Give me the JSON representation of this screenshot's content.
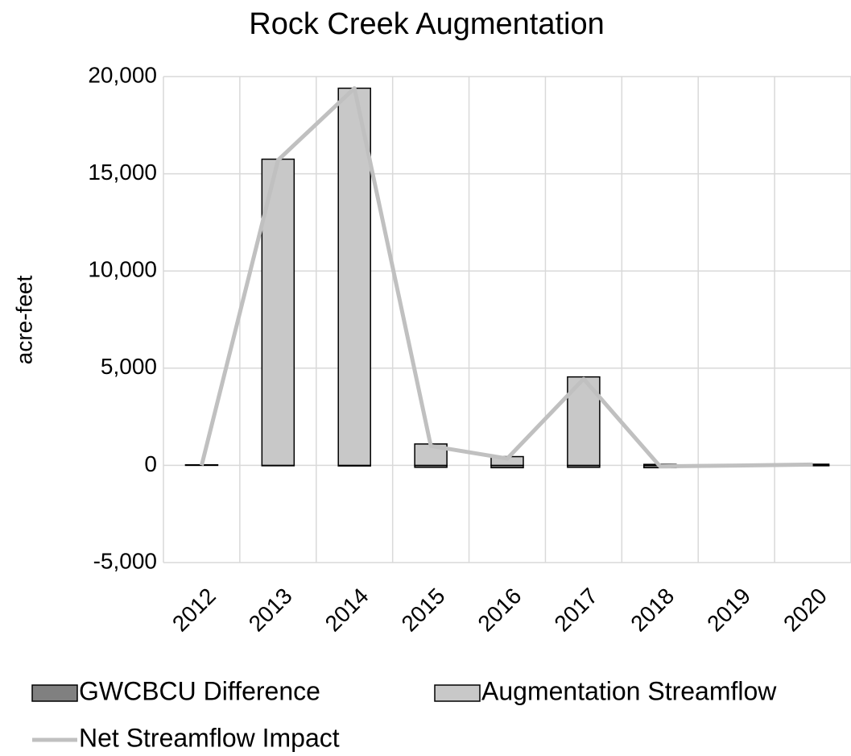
{
  "chart_data": {
    "type": "bar",
    "title": "Rock Creek Augmentation",
    "y_label": "acre-feet",
    "categories": [
      "2012",
      "2013",
      "2014",
      "2015",
      "2016",
      "2017",
      "2018",
      "2019",
      "2020"
    ],
    "series": [
      {
        "name": "GWCBCU Difference",
        "type": "bar",
        "color": "#808080",
        "values": [
          0,
          -20,
          -30,
          -100,
          -120,
          -100,
          -120,
          -30,
          -20
        ]
      },
      {
        "name": "Augmentation Streamflow",
        "type": "bar",
        "color": "#c8c8c8",
        "values": [
          30,
          15750,
          19400,
          1100,
          450,
          4550,
          50,
          20,
          60
        ]
      },
      {
        "name": "Net Streamflow Impact",
        "type": "line",
        "color": "#c0c0c0",
        "values": [
          0,
          15700,
          19400,
          1000,
          350,
          4450,
          -50,
          -10,
          40
        ]
      }
    ],
    "ylim": [
      -5000,
      20000
    ],
    "yticks": [
      {
        "value": -5000,
        "label": "-5,000"
      },
      0,
      {
        "value": 5000,
        "label": "5,000"
      },
      {
        "value": 10000,
        "label": "10,000"
      },
      {
        "value": 15000,
        "label": "15,000"
      },
      {
        "value": 20000,
        "label": "20,000"
      }
    ],
    "grid": true
  }
}
